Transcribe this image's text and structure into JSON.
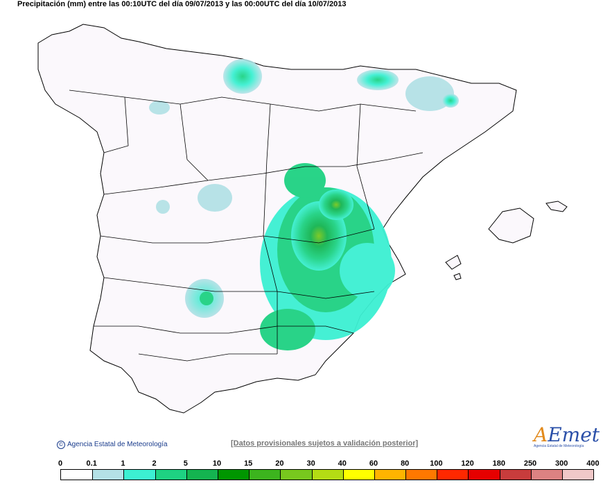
{
  "title": "Precipitación (mm) entre las 00:10UTC del día 09/07/2013 y las 00:00UTC del día 10/07/2013",
  "credit": "Agencia Estatal de Meteorología",
  "disclaimer": "[Datos provisionales sujetos a validación posterior]",
  "logo": {
    "mark": "A",
    "rest": "Emet",
    "subtitle": "Agencia Estatal de Meteorología"
  },
  "legend": {
    "labels": [
      "0",
      "0.1",
      "1",
      "2",
      "5",
      "10",
      "15",
      "20",
      "30",
      "40",
      "60",
      "80",
      "100",
      "120",
      "180",
      "250",
      "300",
      "400"
    ],
    "colors": [
      "#ffffff",
      "#b4e1e6",
      "#3cf0d2",
      "#1ed282",
      "#14b450",
      "#009600",
      "#3cb41e",
      "#78c81e",
      "#b4dc14",
      "#ffff00",
      "#ffb400",
      "#ff7800",
      "#ff2800",
      "#e60000",
      "#c83c3c",
      "#dc8282",
      "#f0c8c8"
    ]
  },
  "colors": {
    "land": "#fbf8fc",
    "border": "#000000",
    "sea": "#ffffff"
  }
}
